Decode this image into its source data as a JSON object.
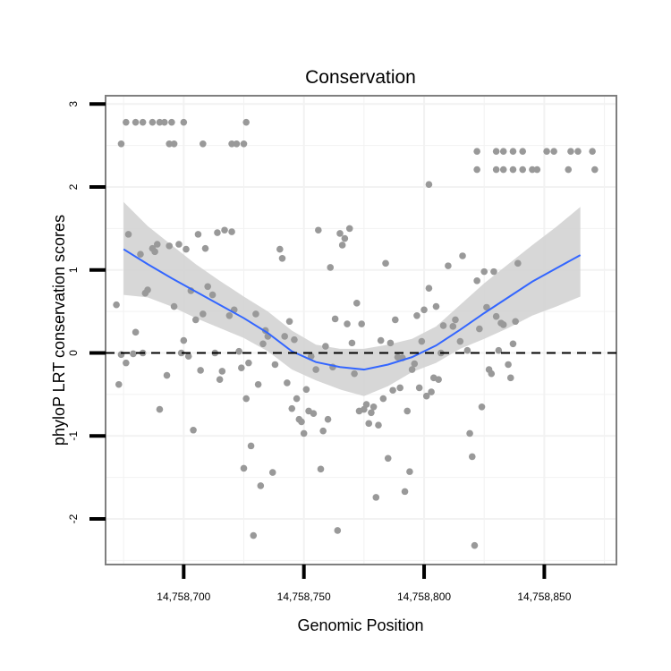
{
  "chart_data": {
    "type": "scatter",
    "title": "Conservation",
    "xlabel": "Genomic Position",
    "ylabel": "phyloP LRT conservation scores",
    "xlim": [
      14758667.5,
      14758880
    ],
    "ylim": [
      -2.55,
      3.1
    ],
    "xticks": [
      14758700,
      14758750,
      14758800,
      14758850
    ],
    "xtick_labels": [
      "14,758,700",
      "14,758,750",
      "14,758,800",
      "14,758,850"
    ],
    "yticks": [
      -2,
      -1,
      0,
      1,
      2,
      3
    ],
    "ytick_labels": [
      "-2",
      "-1",
      "0",
      "1",
      "2",
      "3"
    ],
    "reference_line": {
      "y": 0,
      "style": "dashed"
    },
    "colors": {
      "points": "#999999",
      "smooth": "#3366ff",
      "ribbon": "#d3d3d3",
      "frame": "#7f7f7f",
      "grid": "#f2f2f2"
    },
    "points": [
      [
        14758676,
        2.78
      ],
      [
        14758680,
        2.78
      ],
      [
        14758683,
        2.78
      ],
      [
        14758687,
        2.78
      ],
      [
        14758690,
        2.78
      ],
      [
        14758692,
        2.78
      ],
      [
        14758695,
        2.78
      ],
      [
        14758700,
        2.78
      ],
      [
        14758726,
        2.78
      ],
      [
        14758674,
        2.52
      ],
      [
        14758694,
        2.52
      ],
      [
        14758696,
        2.52
      ],
      [
        14758708,
        2.52
      ],
      [
        14758720,
        2.52
      ],
      [
        14758722,
        2.52
      ],
      [
        14758725,
        2.52
      ],
      [
        14758802,
        2.03
      ],
      [
        14758822,
        2.43
      ],
      [
        14758830,
        2.43
      ],
      [
        14758833,
        2.43
      ],
      [
        14758837,
        2.43
      ],
      [
        14758841,
        2.43
      ],
      [
        14758851,
        2.43
      ],
      [
        14758854,
        2.43
      ],
      [
        14758861,
        2.43
      ],
      [
        14758864,
        2.43
      ],
      [
        14758870,
        2.43
      ],
      [
        14758822,
        2.21
      ],
      [
        14758830,
        2.21
      ],
      [
        14758833,
        2.21
      ],
      [
        14758837,
        2.21
      ],
      [
        14758841,
        2.21
      ],
      [
        14758845,
        2.21
      ],
      [
        14758847,
        2.21
      ],
      [
        14758860,
        2.21
      ],
      [
        14758871,
        2.21
      ],
      [
        14758672,
        0.58
      ],
      [
        14758673,
        -0.38
      ],
      [
        14758674,
        -0.02
      ],
      [
        14758676,
        -0.12
      ],
      [
        14758677,
        1.43
      ],
      [
        14758679,
        -0.01
      ],
      [
        14758680,
        0.25
      ],
      [
        14758682,
        1.19
      ],
      [
        14758683,
        0.0
      ],
      [
        14758684,
        0.72
      ],
      [
        14758685,
        0.76
      ],
      [
        14758687,
        1.26
      ],
      [
        14758688,
        1.22
      ],
      [
        14758689,
        1.31
      ],
      [
        14758690,
        -0.68
      ],
      [
        14758693,
        -0.27
      ],
      [
        14758694,
        1.29
      ],
      [
        14758696,
        0.56
      ],
      [
        14758698,
        1.31
      ],
      [
        14758699,
        0.0
      ],
      [
        14758700,
        0.15
      ],
      [
        14758701,
        1.25
      ],
      [
        14758702,
        -0.04
      ],
      [
        14758703,
        0.75
      ],
      [
        14758704,
        -0.93
      ],
      [
        14758705,
        0.4
      ],
      [
        14758706,
        1.43
      ],
      [
        14758707,
        -0.21
      ],
      [
        14758708,
        0.47
      ],
      [
        14758709,
        1.26
      ],
      [
        14758710,
        0.8
      ],
      [
        14758712,
        0.7
      ],
      [
        14758713,
        0.0
      ],
      [
        14758714,
        1.45
      ],
      [
        14758715,
        -0.32
      ],
      [
        14758716,
        -0.22
      ],
      [
        14758717,
        1.48
      ],
      [
        14758719,
        0.45
      ],
      [
        14758720,
        1.46
      ],
      [
        14758721,
        0.52
      ],
      [
        14758723,
        0.02
      ],
      [
        14758724,
        -0.18
      ],
      [
        14758725,
        -1.39
      ],
      [
        14758726,
        -0.55
      ],
      [
        14758727,
        -0.12
      ],
      [
        14758728,
        -1.12
      ],
      [
        14758729,
        -2.2
      ],
      [
        14758730,
        0.47
      ],
      [
        14758731,
        -0.38
      ],
      [
        14758732,
        -1.6
      ],
      [
        14758733,
        0.11
      ],
      [
        14758734,
        0.27
      ],
      [
        14758735,
        0.2
      ],
      [
        14758737,
        -1.44
      ],
      [
        14758738,
        -0.14
      ],
      [
        14758740,
        1.25
      ],
      [
        14758741,
        1.14
      ],
      [
        14758742,
        0.2
      ],
      [
        14758743,
        -0.36
      ],
      [
        14758744,
        0.38
      ],
      [
        14758745,
        -0.67
      ],
      [
        14758746,
        0.16
      ],
      [
        14758747,
        -0.55
      ],
      [
        14758748,
        -0.8
      ],
      [
        14758749,
        -0.83
      ],
      [
        14758750,
        -0.97
      ],
      [
        14758751,
        -0.44
      ],
      [
        14758752,
        -0.7
      ],
      [
        14758753,
        -0.04
      ],
      [
        14758754,
        -0.73
      ],
      [
        14758755,
        -0.2
      ],
      [
        14758756,
        1.48
      ],
      [
        14758757,
        -1.4
      ],
      [
        14758758,
        -0.94
      ],
      [
        14758759,
        0.08
      ],
      [
        14758760,
        -0.8
      ],
      [
        14758761,
        1.03
      ],
      [
        14758762,
        -0.17
      ],
      [
        14758763,
        0.41
      ],
      [
        14758764,
        -2.14
      ],
      [
        14758765,
        1.44
      ],
      [
        14758766,
        1.3
      ],
      [
        14758767,
        1.38
      ],
      [
        14758768,
        0.35
      ],
      [
        14758769,
        1.5
      ],
      [
        14758770,
        0.12
      ],
      [
        14758771,
        -0.25
      ],
      [
        14758772,
        0.6
      ],
      [
        14758773,
        -0.7
      ],
      [
        14758774,
        0.35
      ],
      [
        14758775,
        -0.68
      ],
      [
        14758776,
        -0.62
      ],
      [
        14758777,
        -0.85
      ],
      [
        14758778,
        -0.72
      ],
      [
        14758779,
        -0.65
      ],
      [
        14758780,
        -1.74
      ],
      [
        14758781,
        -0.87
      ],
      [
        14758782,
        0.15
      ],
      [
        14758783,
        -0.55
      ],
      [
        14758784,
        1.08
      ],
      [
        14758785,
        -1.27
      ],
      [
        14758786,
        0.12
      ],
      [
        14758787,
        -0.45
      ],
      [
        14758788,
        0.4
      ],
      [
        14758789,
        -0.05
      ],
      [
        14758790,
        -0.42
      ],
      [
        14758791,
        -0.06
      ],
      [
        14758792,
        -1.67
      ],
      [
        14758793,
        -0.7
      ],
      [
        14758794,
        -1.43
      ],
      [
        14758795,
        -0.2
      ],
      [
        14758796,
        -0.13
      ],
      [
        14758797,
        0.45
      ],
      [
        14758798,
        -0.42
      ],
      [
        14758799,
        0.14
      ],
      [
        14758800,
        0.52
      ],
      [
        14758801,
        -0.52
      ],
      [
        14758802,
        0.78
      ],
      [
        14758803,
        -0.47
      ],
      [
        14758804,
        -0.3
      ],
      [
        14758805,
        0.56
      ],
      [
        14758806,
        -0.32
      ],
      [
        14758807,
        0.0
      ],
      [
        14758808,
        0.33
      ],
      [
        14758810,
        1.05
      ],
      [
        14758812,
        0.32
      ],
      [
        14758813,
        0.4
      ],
      [
        14758815,
        0.14
      ],
      [
        14758816,
        1.17
      ],
      [
        14758818,
        0.03
      ],
      [
        14758819,
        -0.97
      ],
      [
        14758820,
        -1.25
      ],
      [
        14758821,
        -2.32
      ],
      [
        14758822,
        0.87
      ],
      [
        14758823,
        0.29
      ],
      [
        14758824,
        -0.65
      ],
      [
        14758825,
        0.98
      ],
      [
        14758826,
        0.55
      ],
      [
        14758827,
        -0.2
      ],
      [
        14758828,
        -0.25
      ],
      [
        14758829,
        0.98
      ],
      [
        14758830,
        0.44
      ],
      [
        14758831,
        0.03
      ],
      [
        14758832,
        0.36
      ],
      [
        14758833,
        0.34
      ],
      [
        14758835,
        -0.14
      ],
      [
        14758836,
        -0.3
      ],
      [
        14758837,
        0.11
      ],
      [
        14758838,
        0.38
      ],
      [
        14758839,
        1.08
      ]
    ],
    "smooth": [
      [
        14758675,
        1.25
      ],
      [
        14758685,
        1.07
      ],
      [
        14758695,
        0.9
      ],
      [
        14758705,
        0.74
      ],
      [
        14758715,
        0.58
      ],
      [
        14758725,
        0.42
      ],
      [
        14758735,
        0.24
      ],
      [
        14758745,
        0.02
      ],
      [
        14758755,
        -0.11
      ],
      [
        14758765,
        -0.17
      ],
      [
        14758775,
        -0.2
      ],
      [
        14758785,
        -0.14
      ],
      [
        14758795,
        -0.05
      ],
      [
        14758805,
        0.09
      ],
      [
        14758815,
        0.28
      ],
      [
        14758825,
        0.48
      ],
      [
        14758835,
        0.67
      ],
      [
        14758845,
        0.86
      ],
      [
        14758855,
        1.02
      ],
      [
        14758865,
        1.18
      ]
    ],
    "ribbon_upper": [
      [
        14758675,
        1.82
      ],
      [
        14758685,
        1.53
      ],
      [
        14758695,
        1.3
      ],
      [
        14758705,
        1.07
      ],
      [
        14758715,
        0.87
      ],
      [
        14758725,
        0.68
      ],
      [
        14758735,
        0.5
      ],
      [
        14758745,
        0.27
      ],
      [
        14758755,
        0.1
      ],
      [
        14758765,
        0.05
      ],
      [
        14758775,
        0.05
      ],
      [
        14758785,
        0.1
      ],
      [
        14758795,
        0.17
      ],
      [
        14758805,
        0.32
      ],
      [
        14758815,
        0.58
      ],
      [
        14758825,
        0.84
      ],
      [
        14758835,
        1.07
      ],
      [
        14758845,
        1.3
      ],
      [
        14758855,
        1.52
      ],
      [
        14758865,
        1.76
      ]
    ],
    "ribbon_lower": [
      [
        14758675,
        0.7
      ],
      [
        14758685,
        0.67
      ],
      [
        14758695,
        0.56
      ],
      [
        14758705,
        0.42
      ],
      [
        14758715,
        0.3
      ],
      [
        14758725,
        0.18
      ],
      [
        14758735,
        0.02
      ],
      [
        14758745,
        -0.2
      ],
      [
        14758755,
        -0.33
      ],
      [
        14758765,
        -0.44
      ],
      [
        14758775,
        -0.52
      ],
      [
        14758785,
        -0.4
      ],
      [
        14758795,
        -0.23
      ],
      [
        14758805,
        -0.12
      ],
      [
        14758815,
        0.05
      ],
      [
        14758825,
        0.17
      ],
      [
        14758835,
        0.3
      ],
      [
        14758845,
        0.45
      ],
      [
        14758855,
        0.56
      ],
      [
        14758865,
        0.68
      ]
    ]
  }
}
